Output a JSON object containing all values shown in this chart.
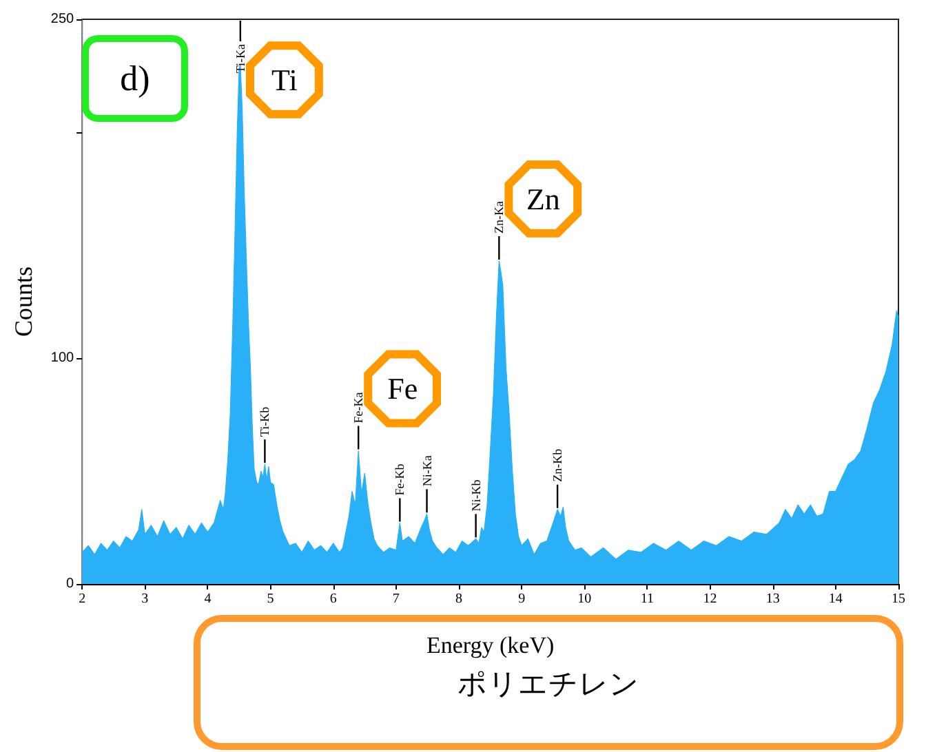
{
  "chart_data": {
    "type": "area",
    "xlabel": "Energy (keV)",
    "ylabel": "Counts",
    "color": "#2ab0f7",
    "x": [
      2.0,
      2.1,
      2.2,
      2.3,
      2.4,
      2.5,
      2.6,
      2.7,
      2.8,
      2.9,
      2.95,
      3.0,
      3.1,
      3.2,
      3.3,
      3.4,
      3.5,
      3.6,
      3.7,
      3.8,
      3.9,
      4.0,
      4.1,
      4.2,
      4.25,
      4.28,
      4.32,
      4.36,
      4.4,
      4.43,
      4.47,
      4.5,
      4.52,
      4.55,
      4.58,
      4.62,
      4.65,
      4.68,
      4.71,
      4.74,
      4.78,
      4.81,
      4.85,
      4.88,
      4.91,
      4.94,
      4.97,
      5.0,
      5.05,
      5.1,
      5.15,
      5.2,
      5.3,
      5.4,
      5.5,
      5.6,
      5.7,
      5.8,
      5.9,
      6.0,
      6.1,
      6.15,
      6.2,
      6.25,
      6.3,
      6.35,
      6.4,
      6.45,
      6.5,
      6.55,
      6.6,
      6.65,
      6.7,
      6.8,
      6.9,
      7.0,
      7.06,
      7.1,
      7.2,
      7.3,
      7.4,
      7.45,
      7.49,
      7.53,
      7.58,
      7.65,
      7.75,
      7.85,
      7.95,
      8.05,
      8.15,
      8.27,
      8.32,
      8.36,
      8.4,
      8.45,
      8.5,
      8.55,
      8.6,
      8.64,
      8.67,
      8.7,
      8.75,
      8.8,
      8.85,
      8.9,
      8.95,
      9.0,
      9.1,
      9.2,
      9.3,
      9.4,
      9.45,
      9.5,
      9.57,
      9.62,
      9.66,
      9.7,
      9.75,
      9.85,
      9.95,
      10.1,
      10.3,
      10.5,
      10.7,
      10.9,
      11.1,
      11.3,
      11.5,
      11.7,
      11.9,
      12.1,
      12.3,
      12.5,
      12.7,
      12.9,
      13.1,
      13.2,
      13.3,
      13.4,
      13.5,
      13.6,
      13.7,
      13.8,
      13.9,
      14.0,
      14.1,
      14.2,
      14.3,
      14.4,
      14.5,
      14.6,
      14.7,
      14.8,
      14.9,
      14.97,
      15.0
    ],
    "values": [
      14,
      17,
      13,
      18,
      15,
      19,
      16,
      21,
      19,
      24,
      33,
      22,
      26,
      21,
      28,
      22,
      25,
      20,
      26,
      22,
      27,
      23,
      27,
      37,
      33,
      40,
      55,
      76,
      116,
      150,
      200,
      228,
      230,
      210,
      175,
      140,
      115,
      96,
      70,
      51,
      45,
      44,
      50,
      47,
      53,
      46,
      52,
      45,
      44,
      35,
      28,
      23,
      17,
      18,
      14,
      19,
      15,
      17,
      14,
      18,
      14,
      16,
      23,
      30,
      41,
      35,
      59,
      40,
      49,
      36,
      27,
      20,
      17,
      14,
      16,
      15,
      27,
      19,
      21,
      18,
      25,
      28,
      31,
      24,
      19,
      16,
      13,
      16,
      14,
      19,
      17,
      20,
      18,
      25,
      23,
      35,
      59,
      84,
      120,
      143,
      138,
      132,
      96,
      76,
      51,
      31,
      21,
      17,
      20,
      13,
      18,
      19,
      23,
      27,
      33,
      30,
      34,
      25,
      19,
      15,
      16,
      12,
      16,
      11,
      15,
      14,
      18,
      15,
      19,
      15,
      19,
      17,
      21,
      19,
      23,
      22,
      27,
      33,
      29,
      35,
      31,
      35,
      30,
      31,
      41,
      41,
      47,
      53,
      55,
      59,
      69,
      80,
      86,
      94,
      106,
      121,
      118
    ],
    "xlim": [
      2,
      15
    ],
    "xticks": [
      2,
      3,
      4,
      5,
      6,
      7,
      8,
      9,
      10,
      11,
      12,
      13,
      14,
      15
    ],
    "ylim": [
      0,
      250
    ],
    "yticks": [
      0,
      100,
      {
        "value": 200,
        "label": null
      },
      250
    ],
    "marker": "none",
    "annotations": [
      "d)",
      {
        "text": "Ti-Ka",
        "x": 4.52,
        "y": 230
      },
      {
        "text": "Ti-Kb",
        "x": 4.91,
        "y": 53
      },
      {
        "text": "Fe-Ka",
        "x": 6.4,
        "y": 59
      },
      {
        "text": "Fe-Kb",
        "x": 7.06,
        "y": 27
      },
      {
        "text": "Ni-Ka",
        "x": 7.49,
        "y": 31
      },
      {
        "text": "Ni-Kb",
        "x": 8.27,
        "y": 20
      },
      {
        "text": "Zn-Ka",
        "x": 8.64,
        "y": 143
      },
      {
        "text": "Zn-Kb",
        "x": 9.57,
        "y": 33
      },
      {
        "text": "Ti",
        "x": 4.52,
        "y": 230
      },
      {
        "text": "Zn",
        "x": 8.64,
        "y": 143
      },
      {
        "text": "Fe",
        "x": 6.4,
        "y": 59
      },
      "ポリエチレン"
    ]
  }
}
